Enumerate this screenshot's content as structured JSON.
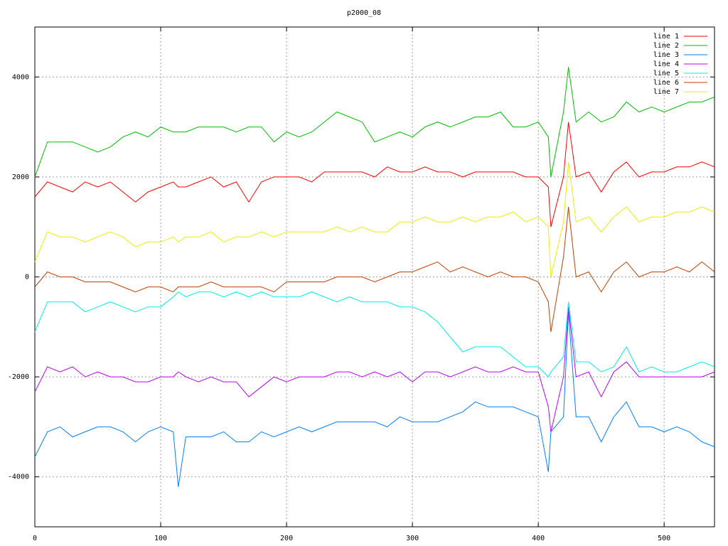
{
  "chart_data": {
    "type": "line",
    "title": "p2000_08",
    "x": [
      0,
      10,
      20,
      30,
      40,
      50,
      60,
      70,
      80,
      90,
      100,
      110,
      114,
      120,
      130,
      140,
      150,
      160,
      170,
      180,
      190,
      200,
      210,
      220,
      230,
      240,
      250,
      260,
      270,
      280,
      290,
      300,
      310,
      320,
      330,
      340,
      350,
      360,
      370,
      380,
      390,
      400,
      408,
      410,
      420,
      424,
      430,
      440,
      450,
      460,
      470,
      480,
      490,
      500,
      510,
      520,
      530,
      540
    ],
    "xlim": [
      0,
      540
    ],
    "ylim": [
      -5000,
      5000
    ],
    "xticks": [
      0,
      100,
      200,
      300,
      400,
      500
    ],
    "yticks": [
      -4000,
      -2000,
      0,
      2000,
      4000
    ],
    "grid": true,
    "legend": "top-right",
    "series": [
      {
        "name": "line 1",
        "color": "#ff0000",
        "values": [
          1600,
          1900,
          1800,
          1700,
          1900,
          1800,
          1900,
          1700,
          1500,
          1700,
          1800,
          1900,
          1800,
          1800,
          1900,
          2000,
          1800,
          1900,
          1500,
          1900,
          2000,
          2000,
          2000,
          1900,
          2100,
          2100,
          2100,
          2100,
          2000,
          2200,
          2100,
          2100,
          2200,
          2100,
          2100,
          2000,
          2100,
          2100,
          2100,
          2100,
          2000,
          2000,
          1800,
          1000,
          2000,
          3100,
          2000,
          2100,
          1700,
          2100,
          2300,
          2000,
          2100,
          2100,
          2200,
          2200,
          2300,
          2200
        ]
      },
      {
        "name": "line 2",
        "color": "#00c000",
        "values": [
          2000,
          2700,
          2700,
          2700,
          2600,
          2500,
          2600,
          2800,
          2900,
          2800,
          3000,
          2900,
          2900,
          2900,
          3000,
          3000,
          3000,
          2900,
          3000,
          3000,
          2700,
          2900,
          2800,
          2900,
          3100,
          3300,
          3200,
          3100,
          2700,
          2800,
          2900,
          2800,
          3000,
          3100,
          3000,
          3100,
          3200,
          3200,
          3300,
          3000,
          3000,
          3100,
          2800,
          2000,
          3300,
          4200,
          3100,
          3300,
          3100,
          3200,
          3500,
          3300,
          3400,
          3300,
          3400,
          3500,
          3500,
          3600
        ]
      },
      {
        "name": "line 3",
        "color": "#0080ff",
        "values": [
          -3600,
          -3100,
          -3000,
          -3200,
          -3100,
          -3000,
          -3000,
          -3100,
          -3300,
          -3100,
          -3000,
          -3100,
          -4200,
          -3200,
          -3200,
          -3200,
          -3100,
          -3300,
          -3300,
          -3100,
          -3200,
          -3100,
          -3000,
          -3100,
          -3000,
          -2900,
          -2900,
          -2900,
          -2900,
          -3000,
          -2800,
          -2900,
          -2900,
          -2900,
          -2800,
          -2700,
          -2500,
          -2600,
          -2600,
          -2600,
          -2700,
          -2800,
          -3900,
          -3100,
          -2800,
          -700,
          -2800,
          -2800,
          -3300,
          -2800,
          -2500,
          -3000,
          -3000,
          -3100,
          -3000,
          -3100,
          -3300,
          -3400
        ]
      },
      {
        "name": "line 4",
        "color": "#c000ff",
        "values": [
          -2300,
          -1800,
          -1900,
          -1800,
          -2000,
          -1900,
          -2000,
          -2000,
          -2100,
          -2100,
          -2000,
          -2000,
          -1900,
          -2000,
          -2100,
          -2000,
          -2100,
          -2100,
          -2400,
          -2200,
          -2000,
          -2100,
          -2000,
          -2000,
          -2000,
          -1900,
          -1900,
          -2000,
          -1900,
          -2000,
          -1900,
          -2100,
          -1900,
          -1900,
          -2000,
          -1900,
          -1800,
          -1900,
          -1900,
          -1800,
          -1900,
          -1900,
          -2600,
          -3100,
          -2000,
          -600,
          -2000,
          -1900,
          -2400,
          -1900,
          -1700,
          -2000,
          -2000,
          -2000,
          -2000,
          -2000,
          -2000,
          -1900
        ]
      },
      {
        "name": "line 5",
        "color": "#00eeee",
        "values": [
          -1100,
          -500,
          -500,
          -500,
          -700,
          -600,
          -500,
          -600,
          -700,
          -600,
          -600,
          -400,
          -300,
          -400,
          -300,
          -300,
          -400,
          -300,
          -400,
          -300,
          -400,
          -400,
          -400,
          -300,
          -400,
          -500,
          -400,
          -500,
          -500,
          -500,
          -600,
          -600,
          -700,
          -900,
          -1200,
          -1500,
          -1400,
          -1400,
          -1400,
          -1600,
          -1800,
          -1800,
          -2000,
          -1900,
          -1600,
          -500,
          -1700,
          -1700,
          -1900,
          -1800,
          -1400,
          -1900,
          -1800,
          -1900,
          -1900,
          -1800,
          -1700,
          -1800
        ]
      },
      {
        "name": "line 6",
        "color": "#c04000",
        "values": [
          -200,
          100,
          0,
          0,
          -100,
          -100,
          -100,
          -200,
          -300,
          -200,
          -200,
          -300,
          -200,
          -200,
          -200,
          -100,
          -200,
          -200,
          -200,
          -200,
          -300,
          -100,
          -100,
          -100,
          -100,
          0,
          0,
          0,
          -100,
          0,
          100,
          100,
          200,
          300,
          100,
          200,
          100,
          0,
          100,
          0,
          0,
          -100,
          -500,
          -1100,
          400,
          1400,
          0,
          100,
          -300,
          100,
          300,
          0,
          100,
          100,
          200,
          100,
          300,
          100
        ]
      },
      {
        "name": "line 7",
        "color": "#eeee00",
        "values": [
          300,
          900,
          800,
          800,
          700,
          800,
          900,
          800,
          600,
          700,
          700,
          800,
          700,
          800,
          800,
          900,
          700,
          800,
          800,
          900,
          800,
          900,
          900,
          900,
          900,
          1000,
          900,
          1000,
          900,
          900,
          1100,
          1100,
          1200,
          1100,
          1100,
          1200,
          1100,
          1200,
          1200,
          1300,
          1100,
          1200,
          1000,
          0,
          1100,
          2300,
          1100,
          1200,
          900,
          1200,
          1400,
          1100,
          1200,
          1200,
          1300,
          1300,
          1400,
          1300
        ]
      }
    ]
  }
}
